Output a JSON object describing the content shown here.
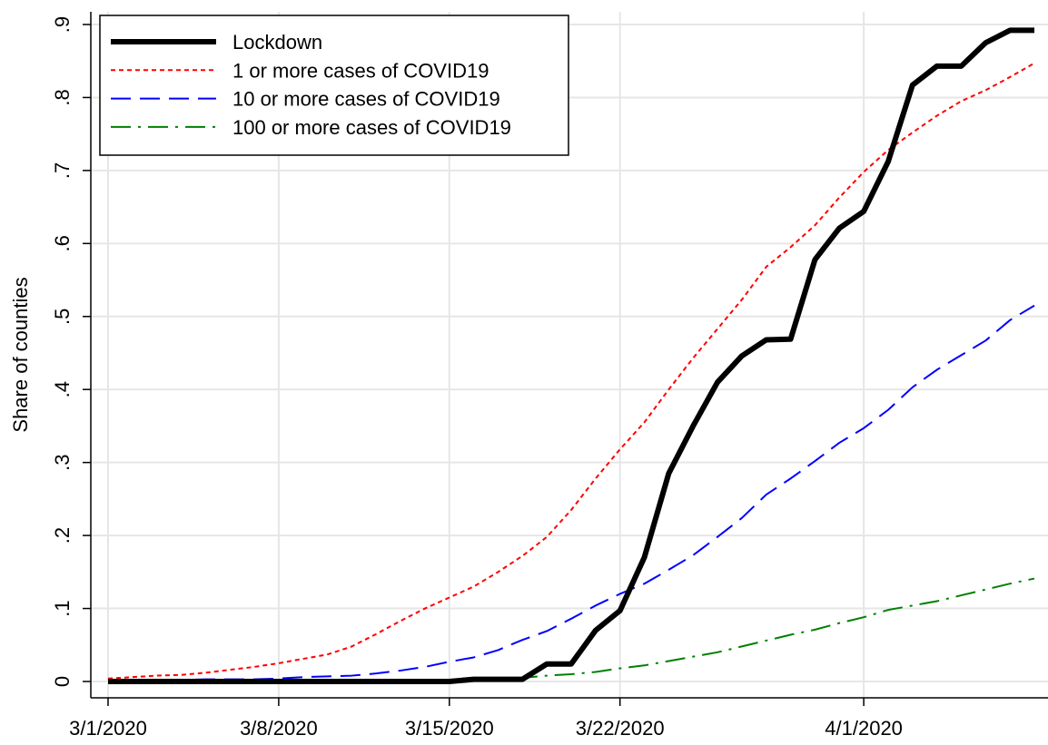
{
  "chart_data": {
    "type": "line",
    "y_label": "Share of counties",
    "x": [
      "2020-03-01",
      "2020-03-02",
      "2020-03-03",
      "2020-03-04",
      "2020-03-05",
      "2020-03-06",
      "2020-03-07",
      "2020-03-08",
      "2020-03-09",
      "2020-03-10",
      "2020-03-11",
      "2020-03-12",
      "2020-03-13",
      "2020-03-14",
      "2020-03-15",
      "2020-03-16",
      "2020-03-17",
      "2020-03-18",
      "2020-03-19",
      "2020-03-20",
      "2020-03-21",
      "2020-03-22",
      "2020-03-23",
      "2020-03-24",
      "2020-03-25",
      "2020-03-26",
      "2020-03-27",
      "2020-03-28",
      "2020-03-29",
      "2020-03-30",
      "2020-03-31",
      "2020-04-01",
      "2020-04-02",
      "2020-04-03",
      "2020-04-04",
      "2020-04-05",
      "2020-04-06",
      "2020-04-07",
      "2020-04-08"
    ],
    "xlim": [
      "2020-03-01",
      "2020-04-08"
    ],
    "xticks": [
      {
        "value": "2020-03-01",
        "label": "3/1/2020"
      },
      {
        "value": "2020-03-08",
        "label": "3/8/2020"
      },
      {
        "value": "2020-03-15",
        "label": "3/15/2020"
      },
      {
        "value": "2020-03-22",
        "label": "3/22/2020"
      },
      {
        "value": "2020-04-01",
        "label": "4/1/2020"
      }
    ],
    "ylim": [
      0,
      0.9
    ],
    "yticks": [
      0,
      {
        "value": 0.1,
        "label": ".1"
      },
      {
        "value": 0.2,
        "label": ".2"
      },
      {
        "value": 0.3,
        "label": ".3"
      },
      {
        "value": 0.4,
        "label": ".4"
      },
      {
        "value": 0.5,
        "label": ".5"
      },
      {
        "value": 0.6,
        "label": ".6"
      },
      {
        "value": 0.7,
        "label": ".7"
      },
      {
        "value": 0.8,
        "label": ".8"
      },
      {
        "value": 0.9,
        "label": ".9"
      }
    ],
    "grid": true,
    "legend": "top-left",
    "series": [
      {
        "name": "Lockdown",
        "color": "#000000",
        "style": "solid",
        "values": [
          0,
          0,
          0,
          0,
          0,
          0,
          0,
          0,
          0,
          0,
          0,
          0,
          0,
          0,
          0,
          0.003,
          0.003,
          0.003,
          0.024,
          0.024,
          0.07,
          0.097,
          0.17,
          0.285,
          0.35,
          0.41,
          0.446,
          0.468,
          0.469,
          0.578,
          0.621,
          0.644,
          0.712,
          0.817,
          0.843,
          0.843,
          0.875,
          0.892,
          0.892
        ]
      },
      {
        "name": "1 or more cases of COVID19",
        "color": "#ff0000",
        "style": "dotted",
        "values": [
          0.004,
          0.006,
          0.008,
          0.009,
          0.012,
          0.016,
          0.02,
          0.025,
          0.031,
          0.037,
          0.048,
          0.065,
          0.083,
          0.1,
          0.115,
          0.13,
          0.15,
          0.172,
          0.198,
          0.235,
          0.278,
          0.318,
          0.355,
          0.4,
          0.443,
          0.483,
          0.523,
          0.568,
          0.595,
          0.625,
          0.663,
          0.698,
          0.728,
          0.752,
          0.775,
          0.795,
          0.81,
          0.828,
          0.847
        ]
      },
      {
        "name": "10 or more cases of COVID19",
        "color": "#0000ff",
        "style": "dashed",
        "values": [
          0.002,
          0.002,
          0.002,
          0.002,
          0.003,
          0.003,
          0.003,
          0.004,
          0.006,
          0.007,
          0.008,
          0.011,
          0.015,
          0.02,
          0.027,
          0.033,
          0.043,
          0.057,
          0.069,
          0.086,
          0.104,
          0.12,
          0.134,
          0.153,
          0.173,
          0.198,
          0.224,
          0.256,
          0.278,
          0.302,
          0.327,
          0.347,
          0.372,
          0.403,
          0.427,
          0.447,
          0.467,
          0.495,
          0.515
        ]
      },
      {
        "name": "100 or more cases of COVID19",
        "color": "#008000",
        "style": "dashdot",
        "values": [
          0.001,
          0.001,
          0.001,
          0.001,
          0.001,
          0.001,
          0.001,
          0.001,
          0.001,
          0.001,
          0.001,
          0.001,
          0.001,
          0.002,
          0.002,
          0.002,
          0.002,
          0.005,
          0.008,
          0.01,
          0.013,
          0.018,
          0.022,
          0.028,
          0.034,
          0.04,
          0.048,
          0.056,
          0.064,
          0.071,
          0.08,
          0.088,
          0.098,
          0.104,
          0.11,
          0.118,
          0.126,
          0.134,
          0.141
        ]
      }
    ]
  }
}
